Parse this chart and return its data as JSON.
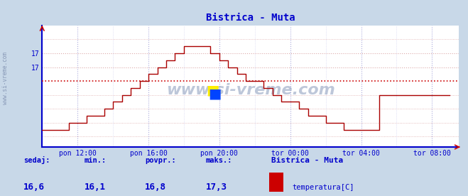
{
  "title": "Bistrica - Muta",
  "title_color": "#0000cc",
  "bg_color": "#c8d8e8",
  "plot_bg_color": "#ffffff",
  "grid_color_h": "#cc9999",
  "grid_color_v": "#aaaacc",
  "axis_color": "#0000cc",
  "line_color": "#aa0000",
  "avg_line_color": "#cc0000",
  "avg_value": 16.8,
  "x_labels": [
    "pon 12:00",
    "pon 16:00",
    "pon 20:00",
    "tor 00:00",
    "tor 04:00",
    "tor 08:00"
  ],
  "ytick_positions": [
    17.0,
    17.2
  ],
  "ytick_labels": [
    "17",
    "17"
  ],
  "y_min": 15.85,
  "y_max": 17.6,
  "xlim_min": 0.0,
  "xlim_max": 23.5,
  "xtick_positions": [
    2.0,
    6.0,
    10.0,
    14.0,
    18.0,
    22.0
  ],
  "watermark": "www.si-vreme.com",
  "footer_labels": [
    "sedaj:",
    "min.:",
    "povpr.:",
    "maks.:"
  ],
  "footer_values": [
    "16,6",
    "16,1",
    "16,8",
    "17,3"
  ],
  "footer_station": "Bistrica - Muta",
  "footer_sensor": "temperatura[C]",
  "footer_color": "#0000cc",
  "legend_color": "#cc0000",
  "steps_x": [
    0.0,
    0.5,
    1.0,
    1.5,
    2.0,
    2.5,
    3.0,
    3.5,
    4.0,
    4.5,
    5.0,
    5.5,
    6.0,
    6.5,
    7.0,
    7.5,
    8.0,
    8.5,
    9.0,
    9.5,
    10.0,
    10.5,
    11.0,
    11.5,
    12.0,
    12.5,
    13.0,
    13.5,
    14.0,
    14.5,
    15.0,
    15.5,
    16.0,
    16.5,
    17.0,
    17.5,
    18.0,
    18.5,
    19.0,
    19.5,
    20.0,
    20.5,
    21.0,
    21.5,
    22.0,
    22.5,
    23.0
  ],
  "steps_y": [
    16.1,
    16.1,
    16.1,
    16.2,
    16.2,
    16.3,
    16.3,
    16.4,
    16.5,
    16.6,
    16.7,
    16.8,
    16.9,
    17.0,
    17.1,
    17.2,
    17.3,
    17.3,
    17.3,
    17.2,
    17.1,
    17.0,
    16.9,
    16.8,
    16.8,
    16.7,
    16.6,
    16.5,
    16.5,
    16.4,
    16.3,
    16.3,
    16.2,
    16.2,
    16.1,
    16.1,
    16.1,
    16.1,
    16.6,
    16.6,
    16.6,
    16.6,
    16.6,
    16.6,
    16.6,
    16.6,
    16.6
  ]
}
